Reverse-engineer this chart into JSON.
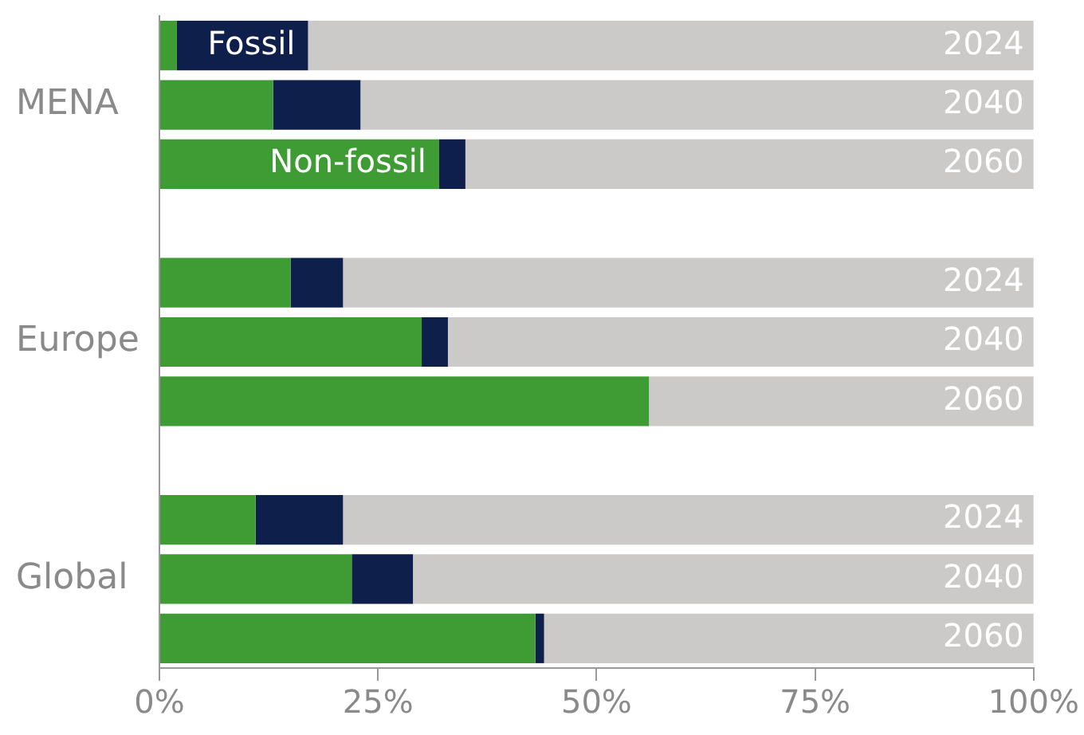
{
  "chart_data": {
    "type": "bar",
    "orientation": "horizontal",
    "stacked": true,
    "categories": [
      "2024",
      "2040",
      "2060",
      null,
      "2024",
      "2040",
      "2060",
      null,
      "2024",
      "2040",
      "2060"
    ],
    "series": [
      {
        "name": "Non-fossil",
        "color": "#3f9c35",
        "values": [
          2,
          13,
          32,
          null,
          15,
          30,
          56,
          null,
          11,
          22,
          43
        ]
      },
      {
        "name": "Fossil",
        "color": "#0f1f4b",
        "values": [
          15,
          10,
          3,
          null,
          6,
          3,
          0,
          null,
          10,
          7,
          1
        ]
      },
      {
        "color": "#cccac8",
        "values": [
          83,
          77,
          65,
          null,
          79,
          67,
          44,
          null,
          79,
          71,
          56
        ]
      }
    ],
    "annotations": [
      "MENA",
      "Europe",
      "Global"
    ],
    "xlim": [
      0,
      100
    ],
    "xticks": [
      {
        "value": 0,
        "label": "0%"
      },
      {
        "value": 25,
        "label": "25%"
      },
      {
        "value": 50,
        "label": "50%"
      },
      {
        "value": 75,
        "label": "75%"
      },
      {
        "value": 100,
        "label": "100%"
      }
    ],
    "grid": false,
    "legend": false
  }
}
